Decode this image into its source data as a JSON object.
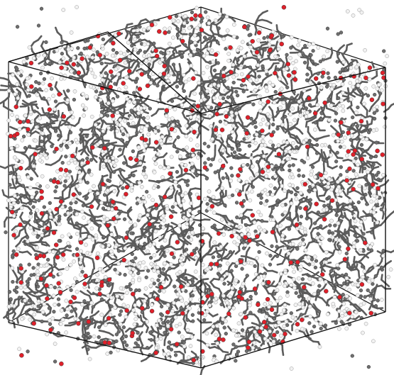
{
  "image": {
    "subject": "molecular-dynamics-simulation-box",
    "background_color": "#ffffff",
    "box_edge_color": "#111111",
    "atom_types": [
      {
        "name": "carbon",
        "color": "#6e6e6e"
      },
      {
        "name": "oxygen",
        "color": "#e0202a"
      },
      {
        "name": "hydrogen",
        "color": "#f2f2f2"
      }
    ],
    "bond_color": "#5c5c5c"
  }
}
